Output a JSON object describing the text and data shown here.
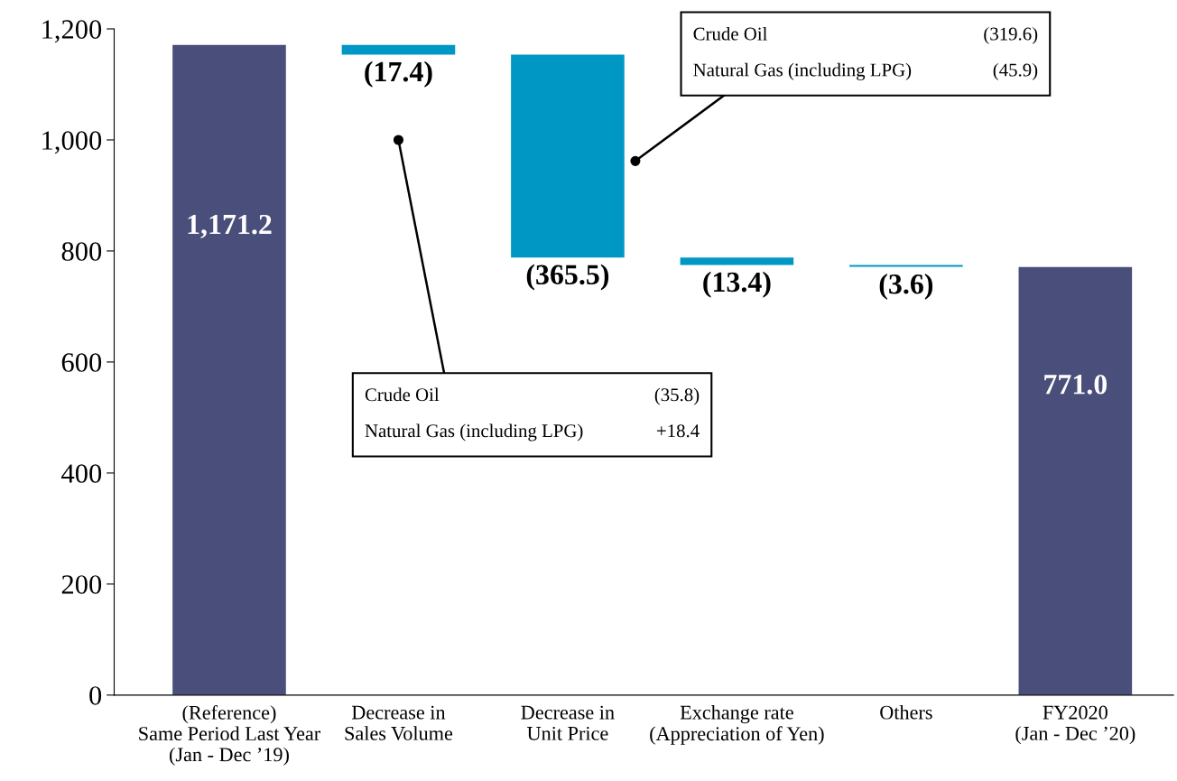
{
  "chart_data": {
    "type": "bar",
    "categories": [
      "(Reference)\nSame Period Last Year\n(Jan - Dec ’19)",
      "Decrease in\nSales Volume",
      "Decrease in\nUnit Price",
      "Exchange rate\n(Appreciation of Yen)",
      "Others",
      "FY2020\n(Jan - Dec ’20)"
    ],
    "values": [
      1171.2,
      -17.4,
      -365.5,
      -13.4,
      -3.6,
      771.0
    ],
    "base": [
      0,
      1171.2,
      1153.8,
      788.3,
      774.9,
      0
    ],
    "colors": [
      "#4a4e7a",
      "#0097c4",
      "#0097c4",
      "#0097c4",
      "#0097c4",
      "#4a4e7a"
    ],
    "value_labels": [
      "1,171.2",
      "(17.4)",
      "(365.5)",
      "(13.4)",
      "(3.6)",
      "771.0"
    ],
    "ylim": [
      0,
      1200
    ],
    "yticks": [
      0,
      {
        "value": 200,
        "label": "200"
      },
      {
        "value": 400,
        "label": "400"
      },
      {
        "value": 600,
        "label": "600"
      },
      {
        "value": 800,
        "label": "800"
      },
      {
        "value": 1000,
        "label": "1,000"
      },
      {
        "value": 1200,
        "label": "1,200"
      }
    ],
    "grid": false,
    "annotations": [
      "Crude Oil (35.8)",
      "Natural Gas (including LPG) +18.4",
      "Crude Oil (319.6)",
      "Natural Gas (including LPG) (45.9)"
    ]
  }
}
